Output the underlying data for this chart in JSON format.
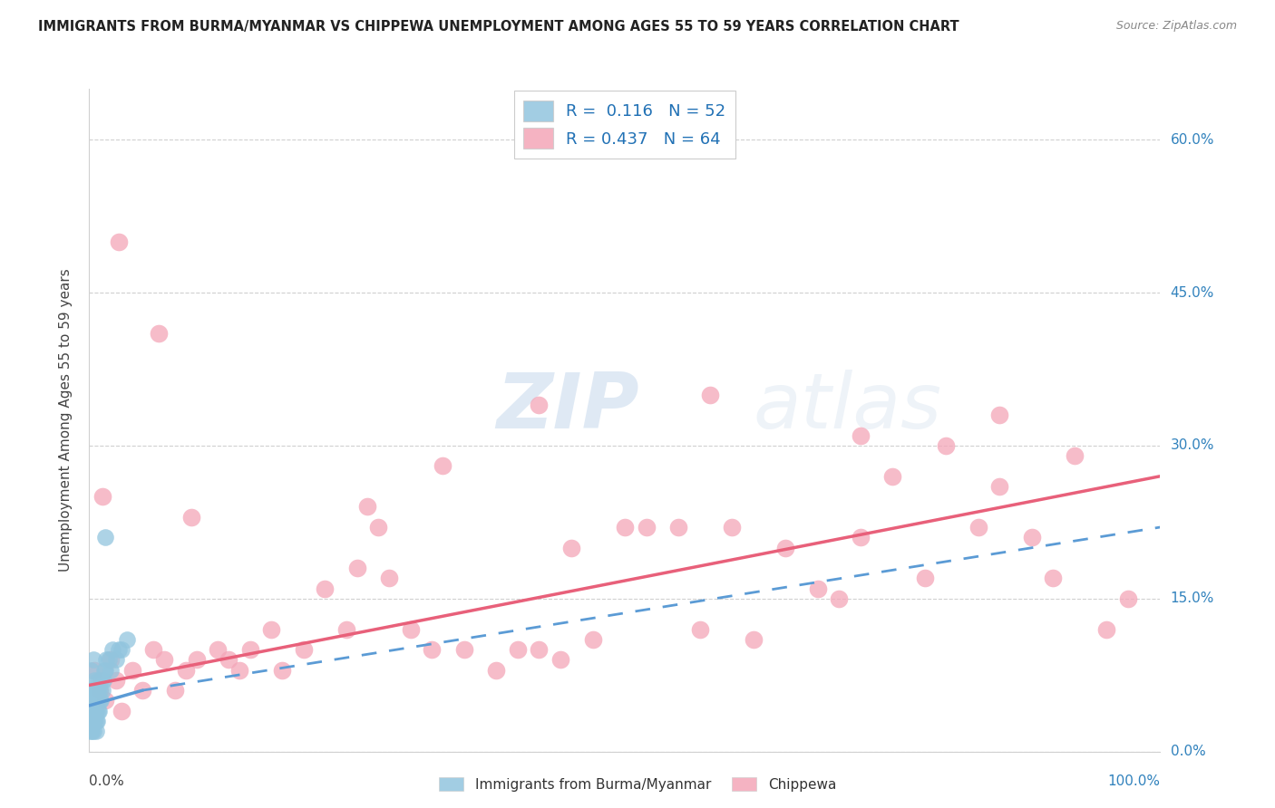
{
  "title": "IMMIGRANTS FROM BURMA/MYANMAR VS CHIPPEWA UNEMPLOYMENT AMONG AGES 55 TO 59 YEARS CORRELATION CHART",
  "source": "Source: ZipAtlas.com",
  "ylabel": "Unemployment Among Ages 55 to 59 years",
  "ytick_labels": [
    "0.0%",
    "15.0%",
    "30.0%",
    "45.0%",
    "60.0%"
  ],
  "ytick_values": [
    0,
    15,
    30,
    45,
    60
  ],
  "xlim": [
    0,
    100
  ],
  "ylim": [
    0,
    65
  ],
  "legend_label1": "Immigrants from Burma/Myanmar",
  "legend_label2": "Chippewa",
  "blue_color": "#92c5de",
  "pink_color": "#f4a6b8",
  "blue_line_color": "#5b9bd5",
  "pink_line_color": "#e8607a",
  "watermark_zip": "ZIP",
  "watermark_atlas": "atlas",
  "background_color": "#ffffff",
  "grid_color": "#d0d0d0",
  "blue_trend_x": [
    0,
    5,
    100
  ],
  "blue_trend_y": [
    4.5,
    6.0,
    22.0
  ],
  "pink_trend_x": [
    0,
    100
  ],
  "pink_trend_y": [
    6.5,
    27.0
  ],
  "blue_x": [
    0.05,
    0.08,
    0.1,
    0.12,
    0.15,
    0.18,
    0.2,
    0.22,
    0.25,
    0.28,
    0.3,
    0.32,
    0.35,
    0.38,
    0.4,
    0.42,
    0.45,
    0.48,
    0.5,
    0.52,
    0.55,
    0.58,
    0.6,
    0.62,
    0.65,
    0.68,
    0.7,
    0.72,
    0.75,
    0.78,
    0.8,
    0.85,
    0.9,
    0.95,
    1.0,
    1.05,
    1.1,
    1.2,
    1.3,
    1.4,
    1.5,
    1.6,
    1.8,
    2.0,
    2.2,
    2.5,
    2.8,
    3.0,
    3.5,
    0.15,
    0.35,
    1.5
  ],
  "blue_y": [
    3,
    5,
    2,
    4,
    6,
    3,
    5,
    2,
    4,
    6,
    3,
    5,
    2,
    4,
    6,
    3,
    5,
    7,
    3,
    5,
    4,
    6,
    3,
    5,
    2,
    4,
    6,
    3,
    5,
    7,
    4,
    6,
    4,
    5,
    6,
    5,
    7,
    6,
    7,
    8,
    8,
    9,
    9,
    8,
    10,
    9,
    10,
    10,
    11,
    8,
    9,
    21
  ],
  "pink_x": [
    0.5,
    1.0,
    1.5,
    2.0,
    2.5,
    3.0,
    4.0,
    5.0,
    6.0,
    7.0,
    8.0,
    9.0,
    10.0,
    12.0,
    14.0,
    15.0,
    17.0,
    18.0,
    20.0,
    22.0,
    24.0,
    25.0,
    27.0,
    28.0,
    30.0,
    32.0,
    35.0,
    38.0,
    40.0,
    42.0,
    44.0,
    45.0,
    47.0,
    50.0,
    52.0,
    55.0,
    57.0,
    60.0,
    62.0,
    65.0,
    68.0,
    70.0,
    72.0,
    75.0,
    78.0,
    80.0,
    83.0,
    85.0,
    88.0,
    90.0,
    92.0,
    95.0,
    97.0,
    1.2,
    2.8,
    6.5,
    9.5,
    13.0,
    26.0,
    33.0,
    42.0,
    58.0,
    72.0,
    85.0
  ],
  "pink_y": [
    8,
    6,
    5,
    9,
    7,
    4,
    8,
    6,
    10,
    9,
    6,
    8,
    9,
    10,
    8,
    10,
    12,
    8,
    10,
    16,
    12,
    18,
    22,
    17,
    12,
    10,
    10,
    8,
    10,
    10,
    9,
    20,
    11,
    22,
    22,
    22,
    12,
    22,
    11,
    20,
    16,
    15,
    21,
    27,
    17,
    30,
    22,
    26,
    21,
    17,
    29,
    12,
    15,
    25,
    50,
    41,
    23,
    9,
    24,
    28,
    34,
    35,
    31,
    33
  ]
}
